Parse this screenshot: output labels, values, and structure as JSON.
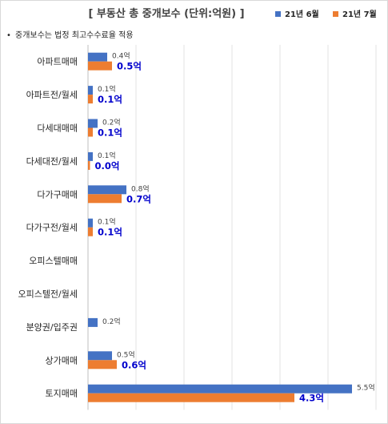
{
  "chart_data": {
    "type": "bar",
    "orientation": "horizontal",
    "title": "[ 부동산 총 중개보수 (단위:억원) ]",
    "note": "중개보수는 법정 최고수수료율 적용",
    "note_bullet": "•",
    "categories": [
      "아파트매매",
      "아파트전/월세",
      "다세대매매",
      "다세대전/월세",
      "다가구매매",
      "다가구전/월세",
      "오피스텔매매",
      "오피스텔전/월세",
      "분양권/입주권",
      "상가매매",
      "토지매매"
    ],
    "series": [
      {
        "name": "21년 6월",
        "color": "#4472c4",
        "values": [
          0.4,
          0.1,
          0.2,
          0.1,
          0.8,
          0.1,
          null,
          null,
          0.2,
          0.5,
          5.5
        ],
        "labels": [
          "0.4억",
          "0.1억",
          "0.2억",
          "0.1억",
          "0.8억",
          "0.1억",
          "",
          "",
          "0.2억",
          "0.5억",
          "5.5억"
        ]
      },
      {
        "name": "21년 7월",
        "color": "#ed7d31",
        "values": [
          0.5,
          0.1,
          0.1,
          0.0,
          0.7,
          0.1,
          null,
          null,
          null,
          0.6,
          4.3
        ],
        "labels": [
          "0.5억",
          "0.1억",
          "0.1억",
          "0.0억",
          "0.7억",
          "0.1억",
          "",
          "",
          "",
          "0.6억",
          "4.3억"
        ]
      }
    ],
    "xlim": [
      0,
      6
    ],
    "grid": true,
    "legend_position": "top-right"
  }
}
